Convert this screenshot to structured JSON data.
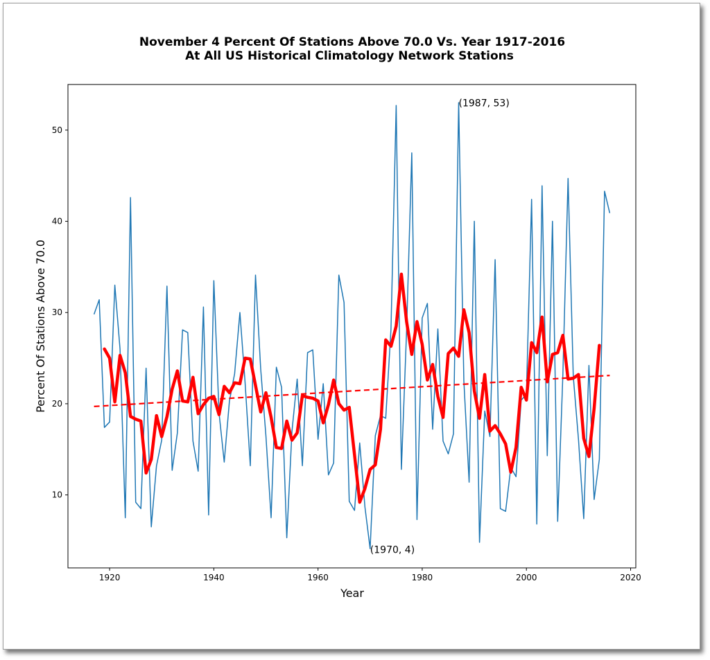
{
  "chart_data": {
    "type": "line",
    "title_line1": "November 4 Percent Of Stations Above 70.0 Vs. Year 1917-2016",
    "title_line2": "At All US Historical Climatology Network Stations",
    "xlabel": "Year",
    "ylabel": "Percent Of Stations Above 70.0",
    "xlim": [
      1912,
      2021
    ],
    "ylim": [
      2,
      55
    ],
    "x_ticks": [
      1920,
      1940,
      1960,
      1980,
      2000,
      2020
    ],
    "y_ticks": [
      10,
      20,
      30,
      40,
      50
    ],
    "grid": false,
    "colors": {
      "raw": "#1f77b4",
      "smooth": "#ff0000",
      "trend": "#ff0000"
    },
    "series": [
      {
        "style": "raw",
        "x": [
          1917,
          1918,
          1919,
          1920,
          1921,
          1922,
          1923,
          1924,
          1925,
          1926,
          1927,
          1928,
          1929,
          1930,
          1931,
          1932,
          1933,
          1934,
          1935,
          1936,
          1937,
          1938,
          1939,
          1940,
          1941,
          1942,
          1943,
          1944,
          1945,
          1946,
          1947,
          1948,
          1949,
          1950,
          1951,
          1952,
          1953,
          1954,
          1955,
          1956,
          1957,
          1958,
          1959,
          1960,
          1961,
          1962,
          1963,
          1964,
          1965,
          1966,
          1967,
          1968,
          1969,
          1970,
          1971,
          1972,
          1973,
          1974,
          1975,
          1976,
          1977,
          1978,
          1979,
          1980,
          1981,
          1982,
          1983,
          1984,
          1985,
          1986,
          1987,
          1988,
          1989,
          1990,
          1991,
          1992,
          1993,
          1994,
          1995,
          1996,
          1997,
          1998,
          1999,
          2000,
          2001,
          2002,
          2003,
          2004,
          2005,
          2006,
          2007,
          2008,
          2009,
          2010,
          2011,
          2012,
          2013,
          2014,
          2015,
          2016
        ],
        "y": [
          29.8,
          31.4,
          17.4,
          18.0,
          33.0,
          26.0,
          7.5,
          42.6,
          9.2,
          8.5,
          23.9,
          6.5,
          13.2,
          16.0,
          32.9,
          12.7,
          16.8,
          28.1,
          27.8,
          15.9,
          12.6,
          30.6,
          7.8,
          33.5,
          19.0,
          13.6,
          20.3,
          23.3,
          30.0,
          22.3,
          13.2,
          34.1,
          23.8,
          16.5,
          7.5,
          24.0,
          21.8,
          5.3,
          17.0,
          22.7,
          13.2,
          25.6,
          25.9,
          16.1,
          22.2,
          12.2,
          13.5,
          34.1,
          31.1,
          9.3,
          8.3,
          15.7,
          8.7,
          4.1,
          16.5,
          18.7,
          18.4,
          28.2,
          52.7,
          12.8,
          28.0,
          47.5,
          7.3,
          29.4,
          31.0,
          17.2,
          28.2,
          15.9,
          14.5,
          16.7,
          53.0,
          22.5,
          11.4,
          40.0,
          4.8,
          19.2,
          16.4,
          35.8,
          8.5,
          8.2,
          13.0,
          12.0,
          20.4,
          21.0,
          42.4,
          6.8,
          43.9,
          14.3,
          40.0,
          7.1,
          23.2,
          44.7,
          23.0,
          16.1,
          7.4,
          24.2,
          9.5,
          13.9,
          43.3,
          40.9
        ]
      },
      {
        "style": "smooth",
        "x": [
          1919,
          1920,
          1921,
          1922,
          1923,
          1924,
          1925,
          1926,
          1927,
          1928,
          1929,
          1930,
          1931,
          1932,
          1933,
          1934,
          1935,
          1936,
          1937,
          1938,
          1939,
          1940,
          1941,
          1942,
          1943,
          1944,
          1945,
          1946,
          1947,
          1948,
          1949,
          1950,
          1951,
          1952,
          1953,
          1954,
          1955,
          1956,
          1957,
          1958,
          1959,
          1960,
          1961,
          1962,
          1963,
          1964,
          1965,
          1966,
          1967,
          1968,
          1969,
          1970,
          1971,
          1972,
          1973,
          1974,
          1975,
          1976,
          1977,
          1978,
          1979,
          1980,
          1981,
          1982,
          1983,
          1984,
          1985,
          1986,
          1987,
          1988,
          1989,
          1990,
          1991,
          1992,
          1993,
          1994,
          1995,
          1996,
          1997,
          1998,
          1999,
          2000,
          2001,
          2002,
          2003,
          2004,
          2005,
          2006,
          2007,
          2008,
          2009,
          2010,
          2011,
          2012,
          2013,
          2014
        ],
        "y": [
          26.0,
          25.0,
          20.2,
          25.3,
          23.4,
          18.6,
          18.3,
          18.1,
          12.4,
          13.9,
          18.7,
          16.4,
          18.6,
          21.6,
          23.6,
          20.3,
          20.2,
          22.9,
          18.9,
          19.9,
          20.6,
          20.8,
          18.8,
          21.9,
          21.2,
          22.3,
          22.2,
          25.0,
          24.9,
          22.0,
          19.1,
          21.2,
          18.5,
          15.2,
          15.1,
          18.1,
          16.0,
          16.8,
          20.9,
          20.7,
          20.6,
          20.3,
          17.9,
          19.9,
          22.6,
          20.0,
          19.3,
          19.6,
          14.4,
          9.2,
          10.7,
          12.8,
          13.3,
          17.2,
          27.0,
          26.3,
          28.5,
          34.2,
          29.0,
          25.4,
          29.0,
          26.5,
          22.6,
          24.3,
          20.8,
          18.5,
          25.5,
          26.1,
          25.2,
          30.3,
          27.8,
          21.4,
          18.4,
          23.2,
          17.0,
          17.6,
          16.7,
          15.6,
          12.5,
          15.2,
          21.8,
          20.4,
          26.7,
          25.6,
          29.5,
          22.4,
          25.4,
          25.6,
          27.5,
          22.7,
          22.8,
          23.2,
          16.2,
          14.2,
          19.5,
          26.4
        ]
      },
      {
        "style": "trend",
        "x": [
          1917,
          2016
        ],
        "y": [
          19.7,
          23.1
        ]
      }
    ],
    "annotations": [
      {
        "text": "(1987, 53)",
        "x": 1987,
        "y": 53
      },
      {
        "text": "(1970, 4)",
        "x": 1970,
        "y": 4
      }
    ]
  }
}
